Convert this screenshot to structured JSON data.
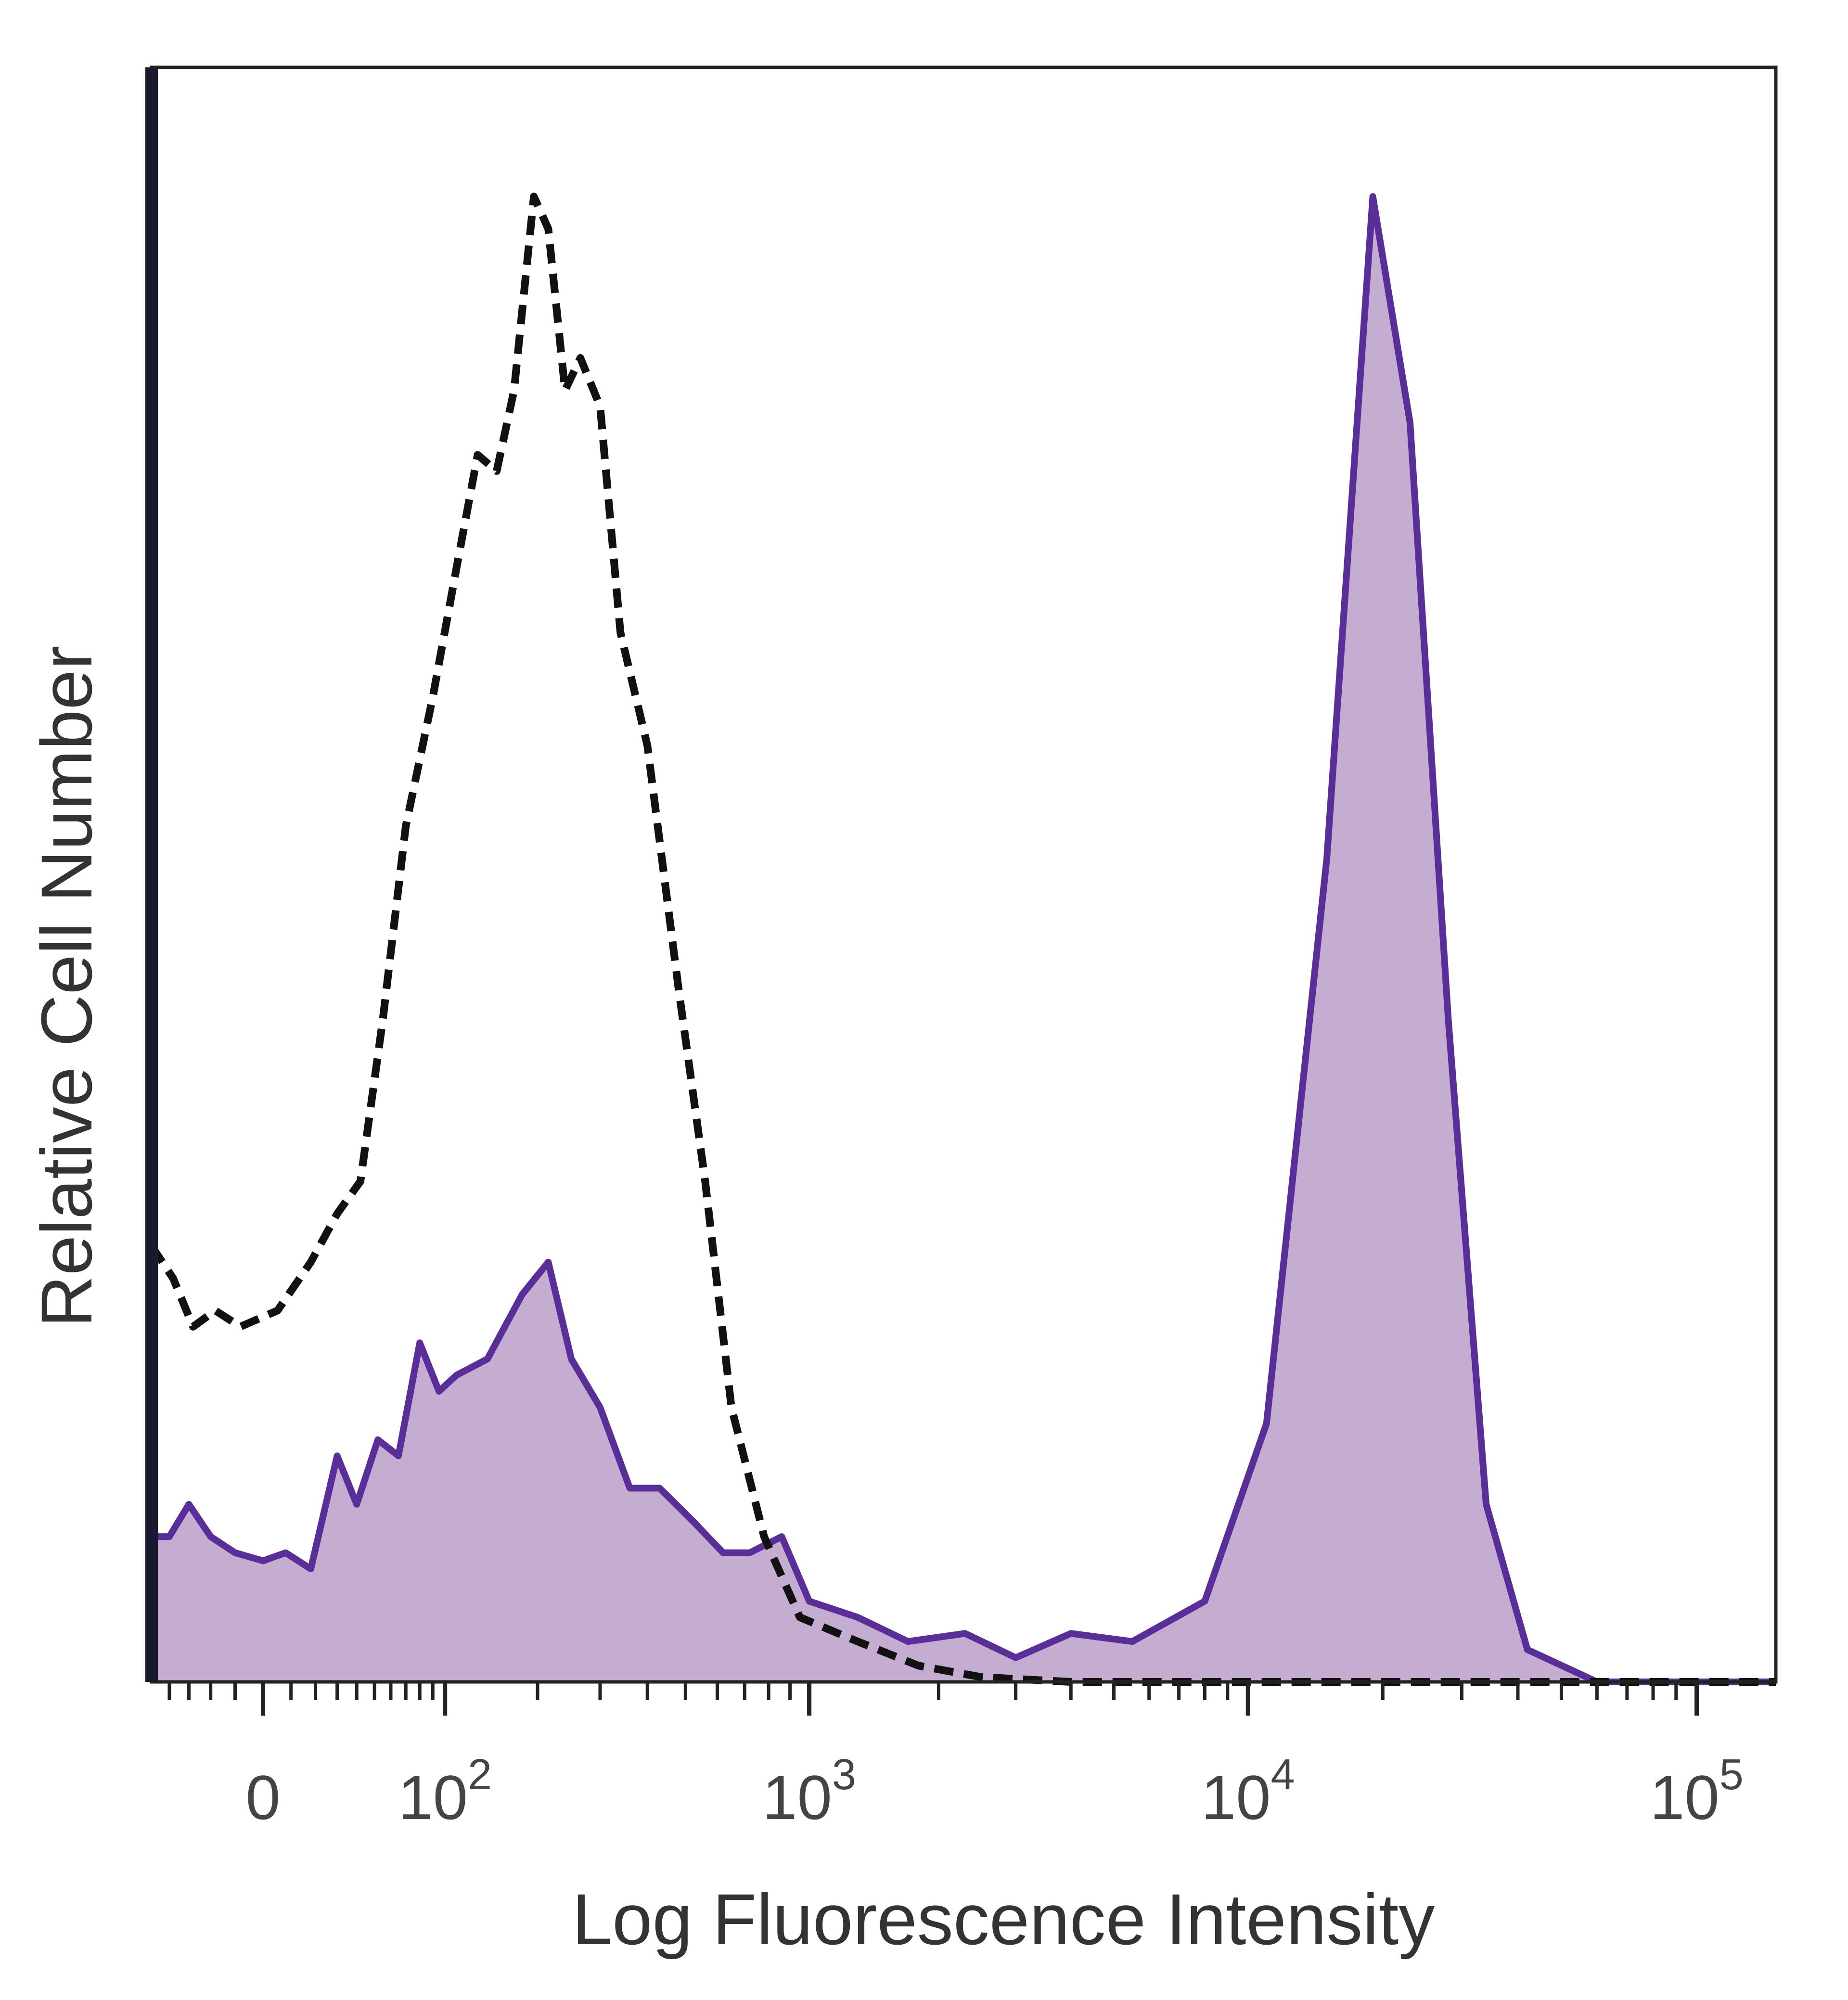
{
  "chart_data": {
    "type": "area",
    "title": "",
    "xlabel": "Log Fluorescence Intensity",
    "ylabel": "Relative Cell Number",
    "x_scale": "biexponential",
    "xlim": [
      -50,
      150000
    ],
    "ylim": [
      0,
      1.0
    ],
    "grid": false,
    "legend": "none",
    "x_ticks": [
      {
        "value": 0,
        "base": "0",
        "exp": ""
      },
      {
        "value": 100,
        "base": "10",
        "exp": "2"
      },
      {
        "value": 1000,
        "base": "10",
        "exp": "3"
      },
      {
        "value": 10000,
        "base": "10",
        "exp": "4"
      },
      {
        "value": 100000,
        "base": "10",
        "exp": "5"
      }
    ],
    "series": [
      {
        "style": "dashed",
        "color": "#111111",
        "fill": "none",
        "points": [
          [
            -50,
            0.27
          ],
          [
            -38,
            0.25
          ],
          [
            -28,
            0.22
          ],
          [
            -18,
            0.23
          ],
          [
            -8,
            0.22
          ],
          [
            5,
            0.23
          ],
          [
            18,
            0.26
          ],
          [
            30,
            0.29
          ],
          [
            42,
            0.31
          ],
          [
            55,
            0.41
          ],
          [
            70,
            0.53
          ],
          [
            90,
            0.61
          ],
          [
            110,
            0.69
          ],
          [
            130,
            0.76
          ],
          [
            150,
            0.75
          ],
          [
            170,
            0.8
          ],
          [
            195,
            0.92
          ],
          [
            215,
            0.9
          ],
          [
            240,
            0.8
          ],
          [
            265,
            0.82
          ],
          [
            300,
            0.79
          ],
          [
            340,
            0.65
          ],
          [
            400,
            0.58
          ],
          [
            480,
            0.43
          ],
          [
            560,
            0.31
          ],
          [
            650,
            0.17
          ],
          [
            780,
            0.09
          ],
          [
            950,
            0.04
          ],
          [
            1300,
            0.025
          ],
          [
            1800,
            0.01
          ],
          [
            2500,
            0.003
          ],
          [
            4000,
            0.0
          ],
          [
            150000,
            0.0
          ]
        ]
      },
      {
        "style": "solid",
        "color": "#5a2e98",
        "fill": "#c5add2",
        "points": [
          [
            -50,
            0.09
          ],
          [
            -40,
            0.09
          ],
          [
            -30,
            0.11
          ],
          [
            -20,
            0.09
          ],
          [
            -10,
            0.08
          ],
          [
            0,
            0.075
          ],
          [
            8,
            0.08
          ],
          [
            18,
            0.07
          ],
          [
            30,
            0.14
          ],
          [
            40,
            0.11
          ],
          [
            52,
            0.15
          ],
          [
            65,
            0.14
          ],
          [
            80,
            0.21
          ],
          [
            95,
            0.18
          ],
          [
            110,
            0.19
          ],
          [
            140,
            0.2
          ],
          [
            180,
            0.24
          ],
          [
            215,
            0.26
          ],
          [
            250,
            0.2
          ],
          [
            300,
            0.17
          ],
          [
            360,
            0.12
          ],
          [
            430,
            0.12
          ],
          [
            520,
            0.1
          ],
          [
            620,
            0.08
          ],
          [
            720,
            0.08
          ],
          [
            860,
            0.09
          ],
          [
            1000,
            0.05
          ],
          [
            1300,
            0.04
          ],
          [
            1700,
            0.025
          ],
          [
            2300,
            0.03
          ],
          [
            3000,
            0.015
          ],
          [
            4000,
            0.03
          ],
          [
            5500,
            0.025
          ],
          [
            8000,
            0.05
          ],
          [
            11000,
            0.16
          ],
          [
            15000,
            0.51
          ],
          [
            19000,
            0.92
          ],
          [
            23000,
            0.78
          ],
          [
            28000,
            0.41
          ],
          [
            34000,
            0.11
          ],
          [
            42000,
            0.02
          ],
          [
            60000,
            0.0
          ],
          [
            150000,
            0.0
          ]
        ]
      }
    ]
  }
}
